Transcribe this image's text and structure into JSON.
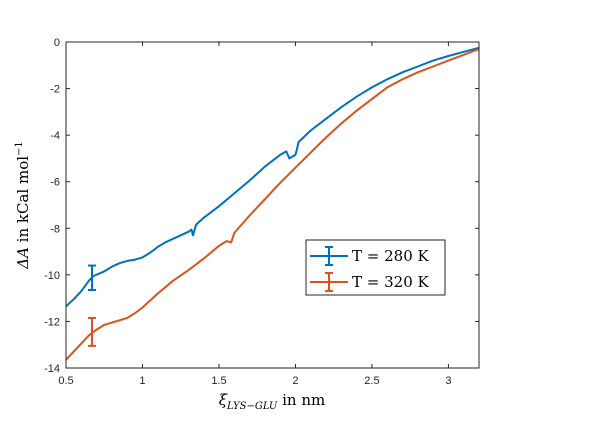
{
  "chart_data": {
    "type": "line",
    "title": "",
    "xlabel": {
      "main": "ξ",
      "sub": "LYS−GLU",
      "rest": " in nm"
    },
    "ylabel": {
      "main": "ΔA",
      "rest": " in kCal mol",
      "sup": "−1"
    },
    "xlim": [
      0.5,
      3.2
    ],
    "ylim": [
      -14,
      0
    ],
    "xticks": [
      0.5,
      1,
      1.5,
      2,
      2.5,
      3
    ],
    "xtick_labels": [
      "0.5",
      "1",
      "1.5",
      "2",
      "2.5",
      "3"
    ],
    "yticks": [
      0,
      -2,
      -4,
      -6,
      -8,
      -10,
      -12,
      -14
    ],
    "ytick_labels": [
      "0",
      "-2",
      "-4",
      "-6",
      "-8",
      "-10",
      "-12",
      "-14"
    ],
    "grid": false,
    "legend_position": "lower-right",
    "series": [
      {
        "name": "T = 280 K",
        "color": "#0072BD",
        "x": [
          0.5,
          0.55,
          0.6,
          0.65,
          0.68,
          0.75,
          0.8,
          0.85,
          0.9,
          0.95,
          1.0,
          1.05,
          1.1,
          1.15,
          1.2,
          1.25,
          1.3,
          1.32,
          1.33,
          1.35,
          1.4,
          1.5,
          1.6,
          1.7,
          1.8,
          1.9,
          1.94,
          1.96,
          2.0,
          2.01,
          2.02,
          2.1,
          2.2,
          2.3,
          2.4,
          2.5,
          2.6,
          2.7,
          2.8,
          2.9,
          3.0,
          3.1,
          3.2
        ],
        "y": [
          -11.35,
          -11.05,
          -10.7,
          -10.25,
          -10.05,
          -9.85,
          -9.65,
          -9.5,
          -9.4,
          -9.35,
          -9.25,
          -9.05,
          -8.8,
          -8.6,
          -8.45,
          -8.3,
          -8.15,
          -8.05,
          -8.3,
          -7.85,
          -7.55,
          -7.05,
          -6.5,
          -5.95,
          -5.35,
          -4.85,
          -4.7,
          -5.0,
          -4.85,
          -4.6,
          -4.3,
          -3.8,
          -3.3,
          -2.8,
          -2.35,
          -1.95,
          -1.6,
          -1.3,
          -1.05,
          -0.8,
          -0.6,
          -0.42,
          -0.25
        ],
        "error_bar": {
          "x": 0.67,
          "y": -10.15,
          "low": -10.65,
          "high": -9.6
        }
      },
      {
        "name": "T = 320 K",
        "color": "#D95319",
        "x": [
          0.5,
          0.55,
          0.6,
          0.65,
          0.7,
          0.75,
          0.8,
          0.85,
          0.9,
          0.95,
          1.0,
          1.1,
          1.2,
          1.3,
          1.4,
          1.5,
          1.55,
          1.58,
          1.6,
          1.7,
          1.8,
          1.9,
          2.0,
          2.1,
          2.2,
          2.3,
          2.4,
          2.5,
          2.6,
          2.7,
          2.8,
          2.9,
          3.0,
          3.1,
          3.2
        ],
        "y": [
          -13.65,
          -13.3,
          -12.95,
          -12.6,
          -12.35,
          -12.15,
          -12.05,
          -11.95,
          -11.85,
          -11.65,
          -11.4,
          -10.8,
          -10.25,
          -9.8,
          -9.3,
          -8.75,
          -8.55,
          -8.6,
          -8.2,
          -7.45,
          -6.75,
          -6.05,
          -5.4,
          -4.75,
          -4.1,
          -3.5,
          -2.95,
          -2.45,
          -1.95,
          -1.6,
          -1.3,
          -1.05,
          -0.8,
          -0.55,
          -0.3
        ],
        "error_bar": {
          "x": 0.67,
          "y": -12.5,
          "low": -13.05,
          "high": -11.85
        }
      }
    ]
  }
}
